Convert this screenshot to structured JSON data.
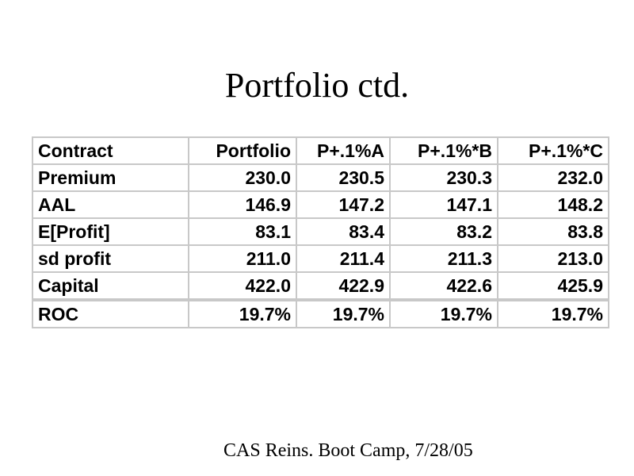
{
  "slide": {
    "title": "Portfolio ctd.",
    "footer": "CAS Reins. Boot Camp, 7/28/05"
  },
  "table": {
    "header": [
      "Contract",
      "Portfolio",
      "P+.1%A",
      "P+.1%*B",
      "P+.1%*C"
    ],
    "rows": [
      [
        "Premium",
        "230.0",
        "230.5",
        "230.3",
        "232.0"
      ],
      [
        "AAL",
        "146.9",
        "147.2",
        "147.1",
        "148.2"
      ],
      [
        "E[Profit]",
        "83.1",
        "83.4",
        "83.2",
        "83.8"
      ],
      [
        "sd profit",
        "211.0",
        "211.4",
        "211.3",
        "213.0"
      ],
      [
        "Capital",
        "422.0",
        "422.9",
        "422.6",
        "425.9"
      ],
      [
        "ROC",
        "19.7%",
        "19.7%",
        "19.7%",
        "19.7%"
      ]
    ]
  },
  "chart_data": {
    "type": "table",
    "columns": [
      "Contract",
      "Portfolio",
      "P+.1%A",
      "P+.1%*B",
      "P+.1%*C"
    ],
    "rows": [
      {
        "Contract": "Premium",
        "Portfolio": 230.0,
        "P+.1%A": 230.5,
        "P+.1%*B": 230.3,
        "P+.1%*C": 232.0
      },
      {
        "Contract": "AAL",
        "Portfolio": 146.9,
        "P+.1%A": 147.2,
        "P+.1%*B": 147.1,
        "P+.1%*C": 148.2
      },
      {
        "Contract": "E[Profit]",
        "Portfolio": 83.1,
        "P+.1%A": 83.4,
        "P+.1%*B": 83.2,
        "P+.1%*C": 83.8
      },
      {
        "Contract": "sd profit",
        "Portfolio": 211.0,
        "P+.1%A": 211.4,
        "P+.1%*B": 211.3,
        "P+.1%*C": 213.0
      },
      {
        "Contract": "Capital",
        "Portfolio": 422.0,
        "P+.1%A": 422.9,
        "P+.1%*B": 422.6,
        "P+.1%*C": 425.9
      },
      {
        "Contract": "ROC",
        "Portfolio": "19.7%",
        "P+.1%A": "19.7%",
        "P+.1%*B": "19.7%",
        "P+.1%*C": "19.7%"
      }
    ]
  }
}
